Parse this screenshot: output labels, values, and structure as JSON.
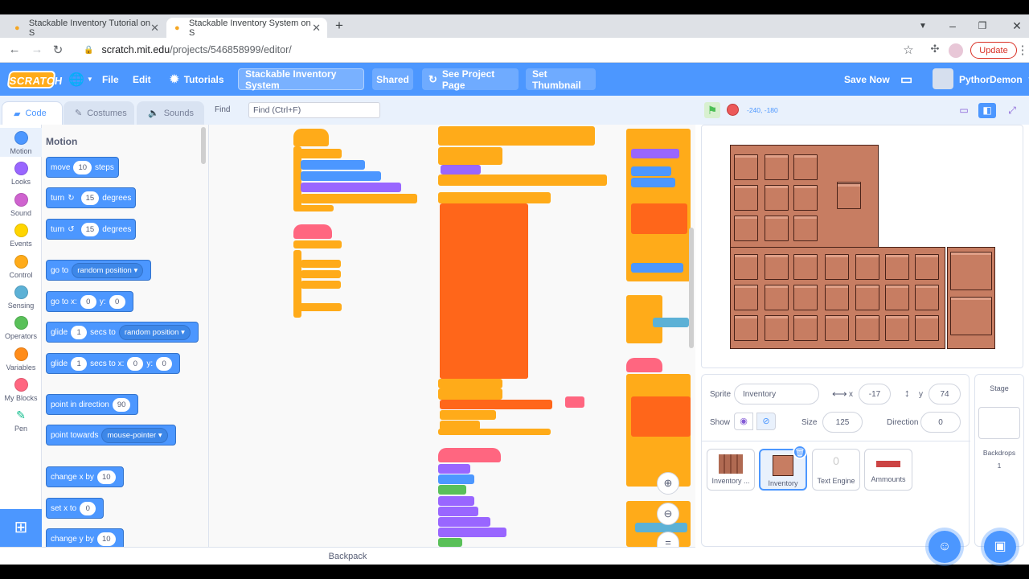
{
  "browser": {
    "tabs": [
      {
        "title": "Stackable Inventory Tutorial on S",
        "active": false
      },
      {
        "title": "Stackable Inventory System on S",
        "active": true
      }
    ],
    "url_host": "scratch.mit.edu",
    "url_path": "/projects/546858999/editor/",
    "update_label": "Update"
  },
  "menubar": {
    "logo": "SCRATCH",
    "file": "File",
    "edit": "Edit",
    "tutorials": "Tutorials",
    "project_title": "Stackable Inventory System",
    "shared": "Shared",
    "see_project": "See Project Page",
    "set_thumbnail": "Set Thumbnail",
    "save_now": "Save Now",
    "username": "PythorDemon"
  },
  "editor_tabs": {
    "code": "Code",
    "costumes": "Costumes",
    "sounds": "Sounds",
    "find_label": "Find",
    "find_placeholder": "Find (Ctrl+F)"
  },
  "categories": [
    {
      "label": "Motion",
      "color": "#4c97ff"
    },
    {
      "label": "Looks",
      "color": "#9966ff"
    },
    {
      "label": "Sound",
      "color": "#cf63cf"
    },
    {
      "label": "Events",
      "color": "#ffd500"
    },
    {
      "label": "Control",
      "color": "#ffab19"
    },
    {
      "label": "Sensing",
      "color": "#5cb1d6"
    },
    {
      "label": "Operators",
      "color": "#59c059"
    },
    {
      "label": "Variables",
      "color": "#ff8c1a"
    },
    {
      "label": "My Blocks",
      "color": "#ff6680"
    },
    {
      "label": "Pen",
      "color": "#0fbd8c"
    }
  ],
  "palette": {
    "heading": "Motion",
    "move": {
      "pre": "move",
      "val": "10",
      "post": "steps"
    },
    "turn_right": {
      "pre": "turn",
      "val": "15",
      "post": "degrees"
    },
    "turn_left": {
      "pre": "turn",
      "val": "15",
      "post": "degrees"
    },
    "go_to": {
      "pre": "go to",
      "drop": "random position"
    },
    "go_to_xy": {
      "pre": "go to x:",
      "x": "0",
      "mid": "y:",
      "y": "0"
    },
    "glide_to": {
      "pre": "glide",
      "val": "1",
      "mid": "secs to",
      "drop": "random position"
    },
    "glide_xy": {
      "pre": "glide",
      "val": "1",
      "mid": "secs to x:",
      "x": "0",
      "mid2": "y:",
      "y": "0"
    },
    "point_dir": {
      "pre": "point in direction",
      "val": "90"
    },
    "point_towards": {
      "pre": "point towards",
      "drop": "mouse-pointer"
    },
    "change_x": {
      "pre": "change x by",
      "val": "10"
    },
    "set_x": {
      "pre": "set x to",
      "val": "0"
    },
    "change_y": {
      "pre": "change y by",
      "val": "10"
    }
  },
  "backpack": "Backpack",
  "stage": {
    "coords": "-240, -180"
  },
  "sprite_info": {
    "sprite_label": "Sprite",
    "sprite_name": "Inventory",
    "x_label": "x",
    "x": "-17",
    "y_label": "y",
    "y": "74",
    "show_label": "Show",
    "size_label": "Size",
    "size": "125",
    "direction_label": "Direction",
    "direction": "0"
  },
  "sprites": [
    {
      "name": "Inventory ...",
      "selected": false
    },
    {
      "name": "Inventory",
      "selected": true
    },
    {
      "name": "Text Engine",
      "selected": false
    },
    {
      "name": "Ammounts",
      "selected": false
    }
  ],
  "stage_pane": {
    "title": "Stage",
    "backdrops_label": "Backdrops",
    "backdrops_count": "1"
  }
}
